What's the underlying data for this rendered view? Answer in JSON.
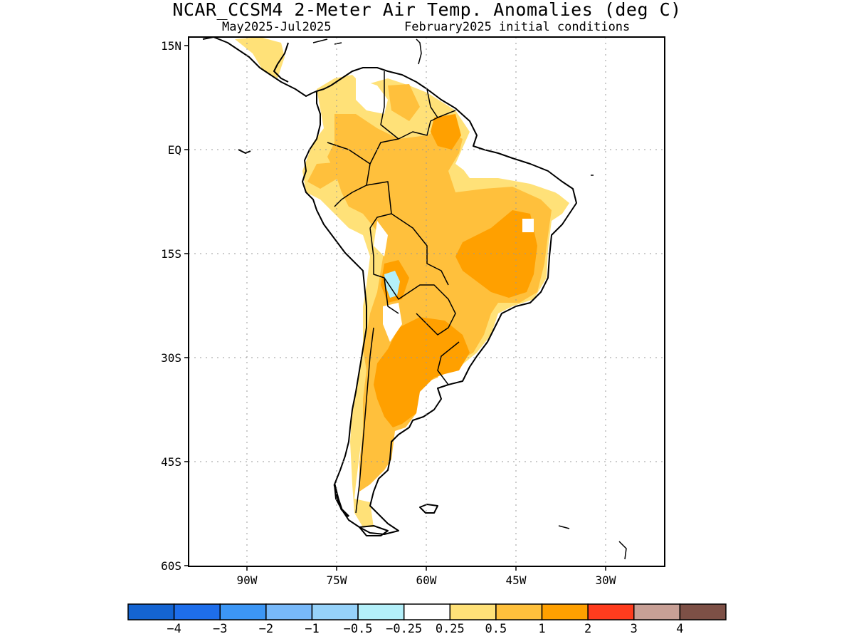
{
  "header": {
    "title": "NCAR_CCSM4 2-Meter Air Temp. Anomalies (deg C)",
    "subtitle_left": "May2025-Jul2025",
    "subtitle_right": "February2025 initial conditions"
  },
  "map": {
    "lon_ticks": [
      "90W",
      "75W",
      "60W",
      "45W",
      "30W"
    ],
    "lat_ticks": [
      "15N",
      "EQ",
      "15S",
      "30S",
      "45S",
      "60S"
    ],
    "projection": "lat-lon",
    "extent": {
      "lon": [
        -100,
        -20
      ],
      "lat": [
        -60,
        15
      ]
    },
    "grid": "dotted"
  },
  "legend": {
    "colors": [
      "#1464d2",
      "#1e6eeb",
      "#3c96f5",
      "#78b9fa",
      "#96d2fa",
      "#b4f0fa",
      "#ffffff",
      "#ffe178",
      "#ffc03c",
      "#ffa000",
      "#ff3c1e",
      "#c8a096",
      "#7d5046"
    ],
    "labels": [
      "-4",
      "-3",
      "-2",
      "-1",
      "-0.5",
      "-0.25",
      "0.25",
      "0.5",
      "1",
      "2",
      "3",
      "4"
    ]
  }
}
